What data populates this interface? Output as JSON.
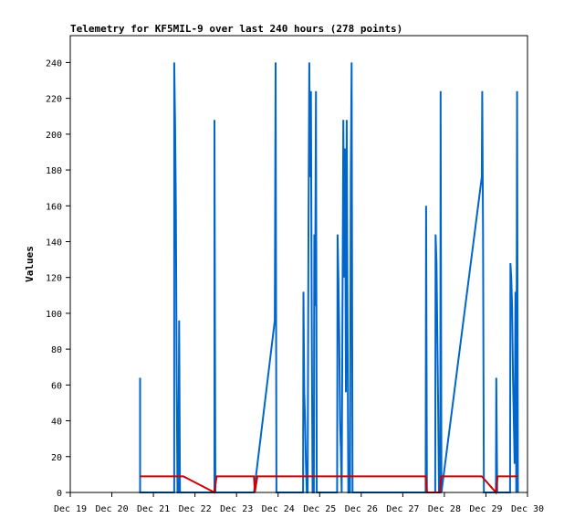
{
  "chart_data": {
    "type": "line",
    "title": "Telemetry for KF5MIL-9 over last 240 hours (278 points)",
    "xlabel": "",
    "ylabel": "Values",
    "x_ticks": [
      "Dec 19",
      "Dec 20",
      "Dec 21",
      "Dec 22",
      "Dec 23",
      "Dec 24",
      "Dec 25",
      "Dec 26",
      "Dec 27",
      "Dec 28",
      "Dec 29",
      "Dec 30"
    ],
    "y_ticks": [
      0,
      20,
      40,
      60,
      80,
      100,
      120,
      140,
      160,
      180,
      200,
      220,
      240
    ],
    "xlim": [
      0,
      11
    ],
    "ylim": [
      0,
      255
    ],
    "grid": false,
    "legend": "none",
    "series": [
      {
        "color": "#0066cc",
        "points": [
          [
            1.68,
            0
          ],
          [
            1.68,
            64
          ],
          [
            1.68,
            0
          ],
          [
            2.5,
            0
          ],
          [
            2.5,
            240
          ],
          [
            2.52,
            208
          ],
          [
            2.54,
            160
          ],
          [
            2.56,
            64
          ],
          [
            2.58,
            0
          ],
          [
            2.6,
            0
          ],
          [
            2.62,
            96
          ],
          [
            2.64,
            0
          ],
          [
            3.47,
            0
          ],
          [
            3.47,
            208
          ],
          [
            3.49,
            0
          ],
          [
            4.42,
            0
          ],
          [
            4.92,
            96
          ],
          [
            4.94,
            240
          ],
          [
            4.96,
            0
          ],
          [
            5.6,
            0
          ],
          [
            5.61,
            112
          ],
          [
            5.63,
            56
          ],
          [
            5.65,
            40
          ],
          [
            5.67,
            16
          ],
          [
            5.69,
            0
          ],
          [
            5.71,
            0
          ],
          [
            5.73,
            144
          ],
          [
            5.75,
            240
          ],
          [
            5.77,
            176
          ],
          [
            5.79,
            224
          ],
          [
            5.81,
            96
          ],
          [
            5.83,
            0
          ],
          [
            5.86,
            0
          ],
          [
            5.87,
            144
          ],
          [
            5.89,
            104
          ],
          [
            5.91,
            224
          ],
          [
            5.93,
            0
          ],
          [
            6.42,
            0
          ],
          [
            6.43,
            144
          ],
          [
            6.45,
            120
          ],
          [
            6.47,
            88
          ],
          [
            6.49,
            40
          ],
          [
            6.51,
            24
          ],
          [
            6.53,
            0
          ],
          [
            6.57,
            208
          ],
          [
            6.59,
            120
          ],
          [
            6.61,
            192
          ],
          [
            6.63,
            56
          ],
          [
            6.65,
            208
          ],
          [
            6.67,
            96
          ],
          [
            6.69,
            0
          ],
          [
            6.73,
            0
          ],
          [
            6.75,
            176
          ],
          [
            6.77,
            240
          ],
          [
            6.79,
            0
          ],
          [
            8.55,
            0
          ],
          [
            8.56,
            160
          ],
          [
            8.58,
            0
          ],
          [
            8.78,
            0
          ],
          [
            8.79,
            144
          ],
          [
            8.81,
            128
          ],
          [
            8.83,
            88
          ],
          [
            8.85,
            48
          ],
          [
            8.87,
            0
          ],
          [
            8.9,
            0
          ],
          [
            8.91,
            224
          ],
          [
            8.93,
            0
          ],
          [
            9.9,
            176
          ],
          [
            9.91,
            224
          ],
          [
            9.93,
            144
          ],
          [
            9.95,
            0
          ],
          [
            10.24,
            0
          ],
          [
            10.25,
            64
          ],
          [
            10.27,
            0
          ],
          [
            10.58,
            0
          ],
          [
            10.59,
            128
          ],
          [
            10.61,
            120
          ],
          [
            10.63,
            104
          ],
          [
            10.65,
            64
          ],
          [
            10.67,
            40
          ],
          [
            10.69,
            16
          ],
          [
            10.71,
            112
          ],
          [
            10.73,
            0
          ],
          [
            10.75,
            224
          ],
          [
            10.77,
            0
          ]
        ]
      },
      {
        "color": "#cc0000",
        "points": [
          [
            1.68,
            9
          ],
          [
            2.72,
            9
          ],
          [
            3.47,
            0
          ],
          [
            3.52,
            9
          ],
          [
            4.42,
            9
          ],
          [
            4.44,
            0
          ],
          [
            4.5,
            9
          ],
          [
            8.55,
            9
          ],
          [
            8.58,
            0
          ],
          [
            8.9,
            0
          ],
          [
            8.92,
            9
          ],
          [
            9.9,
            9
          ],
          [
            10.24,
            0
          ],
          [
            10.28,
            9
          ],
          [
            10.77,
            9
          ]
        ]
      }
    ]
  }
}
